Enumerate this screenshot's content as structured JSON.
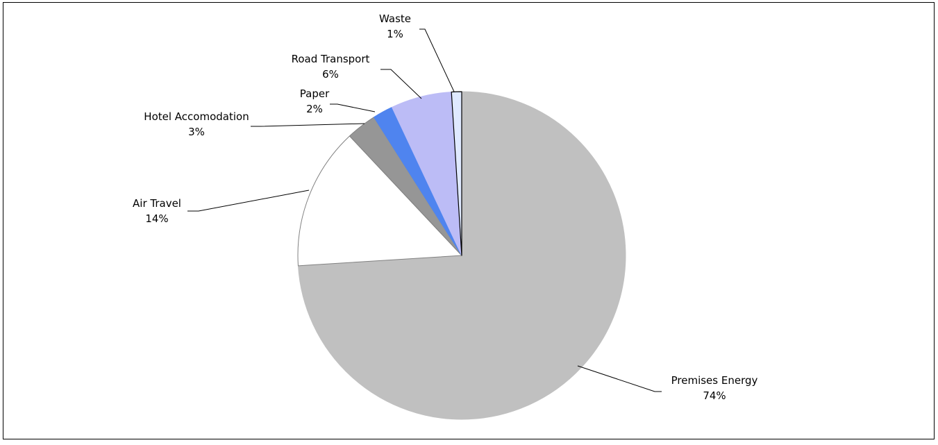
{
  "chart_data": {
    "type": "pie",
    "title": "",
    "start_angle_deg": 0,
    "direction": "clockwise",
    "slices": [
      {
        "category": "Premises Energy",
        "percent": 74,
        "label": "Premises Energy",
        "value_label": "74%",
        "color": "#c0c0c0",
        "stroke": "#c0c0c0"
      },
      {
        "category": "Air Travel",
        "percent": 14,
        "label": "Air Travel",
        "value_label": "14%",
        "color": "#ffffff",
        "stroke": "#808080"
      },
      {
        "category": "Hotel Accomodation",
        "percent": 3,
        "label": "Hotel Accomodation",
        "value_label": "3%",
        "color": "#969696",
        "stroke": "#808080"
      },
      {
        "category": "Paper",
        "percent": 2,
        "label": "Paper",
        "value_label": "2%",
        "color": "#4f84ef",
        "stroke": "#4f84ef"
      },
      {
        "category": "Road Transport",
        "percent": 6,
        "label": "Road Transport",
        "value_label": "6%",
        "color": "#bcbcf6",
        "stroke": "#bcbcf6"
      },
      {
        "category": "Waste",
        "percent": 1,
        "label": "Waste",
        "value_label": "1%",
        "color": "#dfe9ff",
        "stroke": "#000000"
      }
    ]
  }
}
